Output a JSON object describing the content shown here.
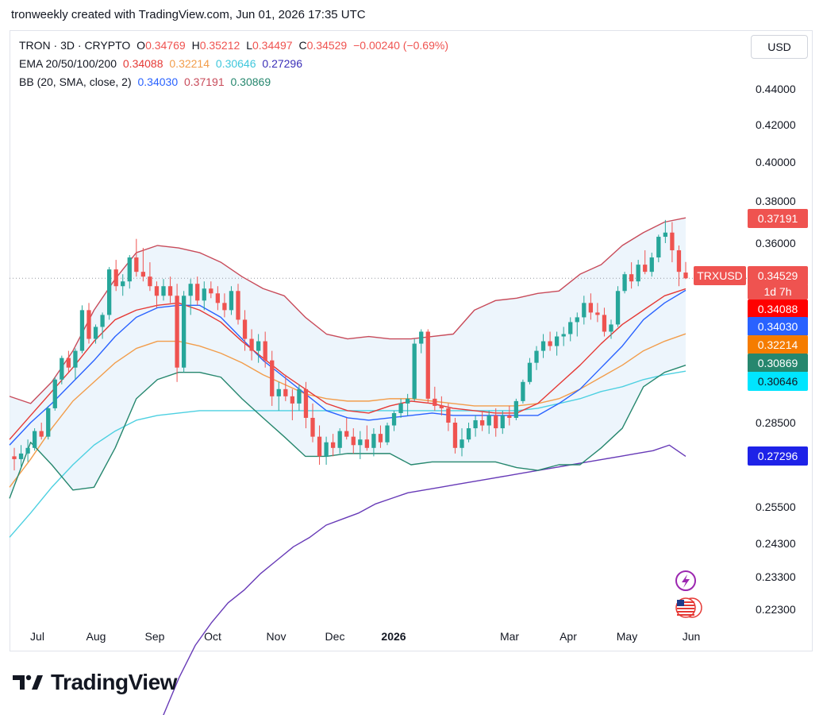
{
  "caption": "tronweekly created with TradingView.com, Jun 01, 2026 17:35 UTC",
  "brand": "TradingView",
  "currency": "USD",
  "legend": {
    "symbol": "TRON · 3D · CRYPTO",
    "ohlc": {
      "o_label": "O",
      "o": "0.34769",
      "h_label": "H",
      "h": "0.35212",
      "l_label": "L",
      "l": "0.34497",
      "c_label": "C",
      "c": "0.34529",
      "change": "−0.00240 (−0.69%)"
    },
    "ema_label": "EMA 20/50/100/200",
    "ema_values": [
      "0.34088",
      "0.32214",
      "0.30646",
      "0.27296"
    ],
    "bb_label": "BB (20, SMA, close, 2)",
    "bb_values": [
      "0.34030",
      "0.37191",
      "0.30869"
    ]
  },
  "colors": {
    "up": "#26a69a",
    "down": "#ef5350",
    "ema20": "#e53935",
    "ema50": "#f29d4b",
    "ema100": "#4dd0e1",
    "ema200": "#673ab7",
    "bb_basis": "#2962ff",
    "bb_upper": "#c84b5a",
    "bb_lower": "#26876e",
    "bb_fill": "#e8f3fb"
  },
  "chart_data": {
    "type": "candlestick",
    "symbol": "TRXUSD",
    "y_ticks": [
      "0.44000",
      "0.42000",
      "0.40000",
      "0.38000",
      "0.36000",
      "0.28500",
      "0.25500",
      "0.24300",
      "0.23300",
      "0.22300"
    ],
    "x_ticks": [
      "Jul",
      "Aug",
      "Sep",
      "Oct",
      "Nov",
      "Dec",
      "2026",
      "Mar",
      "Apr",
      "May",
      "Jun"
    ],
    "price_labels": [
      {
        "text": "0.37191",
        "color": "#ef5350",
        "key": "bb_upper"
      },
      {
        "text": "TRXUSD",
        "color": "#ef5350",
        "key": "symbol"
      },
      {
        "text": "0.34529",
        "color": "#ef5350",
        "key": "last"
      },
      {
        "text": "1d 7h",
        "color": "#ef5350",
        "key": "countdown"
      },
      {
        "text": "0.34088",
        "color": "#ff0000",
        "key": "ema20"
      },
      {
        "text": "0.34030",
        "color": "#2962ff",
        "key": "bb_basis"
      },
      {
        "text": "0.32214",
        "color": "#f57c00",
        "key": "ema50"
      },
      {
        "text": "0.30869",
        "color": "#26876e",
        "key": "bb_lower"
      },
      {
        "text": "0.30646",
        "color": "#00e5ff",
        "key": "ema100"
      },
      {
        "text": "0.27296",
        "color": "#1e22e8",
        "key": "ema200"
      }
    ],
    "candles": [
      [
        0.273,
        0.276,
        0.268,
        0.272
      ],
      [
        0.272,
        0.277,
        0.269,
        0.274
      ],
      [
        0.274,
        0.279,
        0.271,
        0.276
      ],
      [
        0.276,
        0.283,
        0.275,
        0.282
      ],
      [
        0.282,
        0.285,
        0.279,
        0.28
      ],
      [
        0.28,
        0.292,
        0.279,
        0.291
      ],
      [
        0.291,
        0.304,
        0.29,
        0.303
      ],
      [
        0.303,
        0.313,
        0.301,
        0.312
      ],
      [
        0.312,
        0.315,
        0.306,
        0.308
      ],
      [
        0.308,
        0.316,
        0.303,
        0.315
      ],
      [
        0.315,
        0.334,
        0.314,
        0.332
      ],
      [
        0.332,
        0.335,
        0.318,
        0.32
      ],
      [
        0.32,
        0.326,
        0.318,
        0.325
      ],
      [
        0.325,
        0.331,
        0.32,
        0.33
      ],
      [
        0.33,
        0.35,
        0.328,
        0.349
      ],
      [
        0.349,
        0.353,
        0.34,
        0.342
      ],
      [
        0.342,
        0.347,
        0.338,
        0.344
      ],
      [
        0.344,
        0.355,
        0.341,
        0.354
      ],
      [
        0.354,
        0.362,
        0.346,
        0.348
      ],
      [
        0.348,
        0.358,
        0.344,
        0.346
      ],
      [
        0.346,
        0.352,
        0.34,
        0.342
      ],
      [
        0.342,
        0.344,
        0.333,
        0.338
      ],
      [
        0.338,
        0.345,
        0.336,
        0.342
      ],
      [
        0.342,
        0.346,
        0.335,
        0.338
      ],
      [
        0.338,
        0.343,
        0.302,
        0.308
      ],
      [
        0.308,
        0.34,
        0.306,
        0.338
      ],
      [
        0.338,
        0.345,
        0.33,
        0.343
      ],
      [
        0.343,
        0.346,
        0.334,
        0.336
      ],
      [
        0.336,
        0.344,
        0.332,
        0.341
      ],
      [
        0.341,
        0.344,
        0.337,
        0.339
      ],
      [
        0.339,
        0.342,
        0.332,
        0.335
      ],
      [
        0.335,
        0.339,
        0.329,
        0.332
      ],
      [
        0.332,
        0.342,
        0.33,
        0.34
      ],
      [
        0.34,
        0.343,
        0.326,
        0.328
      ],
      [
        0.328,
        0.332,
        0.315,
        0.32
      ],
      [
        0.32,
        0.324,
        0.311,
        0.315
      ],
      [
        0.315,
        0.322,
        0.31,
        0.319
      ],
      [
        0.319,
        0.323,
        0.308,
        0.311
      ],
      [
        0.311,
        0.315,
        0.292,
        0.296
      ],
      [
        0.296,
        0.302,
        0.29,
        0.299
      ],
      [
        0.299,
        0.305,
        0.294,
        0.296
      ],
      [
        0.296,
        0.299,
        0.286,
        0.293
      ],
      [
        0.293,
        0.301,
        0.29,
        0.299
      ],
      [
        0.299,
        0.302,
        0.283,
        0.287
      ],
      [
        0.287,
        0.293,
        0.278,
        0.28
      ],
      [
        0.28,
        0.284,
        0.27,
        0.273
      ],
      [
        0.273,
        0.28,
        0.27,
        0.278
      ],
      [
        0.278,
        0.281,
        0.273,
        0.276
      ],
      [
        0.276,
        0.283,
        0.274,
        0.282
      ],
      [
        0.282,
        0.287,
        0.279,
        0.28
      ],
      [
        0.28,
        0.283,
        0.274,
        0.277
      ],
      [
        0.277,
        0.282,
        0.272,
        0.279
      ],
      [
        0.279,
        0.284,
        0.275,
        0.276
      ],
      [
        0.276,
        0.283,
        0.273,
        0.281
      ],
      [
        0.281,
        0.284,
        0.276,
        0.278
      ],
      [
        0.278,
        0.285,
        0.277,
        0.284
      ],
      [
        0.284,
        0.29,
        0.282,
        0.289
      ],
      [
        0.289,
        0.295,
        0.287,
        0.293
      ],
      [
        0.293,
        0.297,
        0.288,
        0.295
      ],
      [
        0.295,
        0.32,
        0.294,
        0.318
      ],
      [
        0.318,
        0.324,
        0.314,
        0.323
      ],
      [
        0.323,
        0.324,
        0.293,
        0.295
      ],
      [
        0.295,
        0.3,
        0.29,
        0.292
      ],
      [
        0.292,
        0.296,
        0.288,
        0.291
      ],
      [
        0.291,
        0.293,
        0.282,
        0.285
      ],
      [
        0.285,
        0.287,
        0.274,
        0.276
      ],
      [
        0.276,
        0.283,
        0.273,
        0.279
      ],
      [
        0.279,
        0.285,
        0.278,
        0.283
      ],
      [
        0.283,
        0.288,
        0.28,
        0.286
      ],
      [
        0.286,
        0.29,
        0.282,
        0.284
      ],
      [
        0.284,
        0.29,
        0.281,
        0.288
      ],
      [
        0.288,
        0.291,
        0.28,
        0.283
      ],
      [
        0.283,
        0.29,
        0.281,
        0.288
      ],
      [
        0.288,
        0.292,
        0.284,
        0.287
      ],
      [
        0.287,
        0.295,
        0.286,
        0.294
      ],
      [
        0.294,
        0.303,
        0.293,
        0.302
      ],
      [
        0.302,
        0.312,
        0.301,
        0.31
      ],
      [
        0.31,
        0.317,
        0.307,
        0.315
      ],
      [
        0.315,
        0.322,
        0.312,
        0.319
      ],
      [
        0.319,
        0.323,
        0.315,
        0.317
      ],
      [
        0.317,
        0.323,
        0.313,
        0.321
      ],
      [
        0.321,
        0.325,
        0.317,
        0.322
      ],
      [
        0.322,
        0.329,
        0.319,
        0.327
      ],
      [
        0.327,
        0.331,
        0.321,
        0.329
      ],
      [
        0.329,
        0.338,
        0.326,
        0.335
      ],
      [
        0.335,
        0.339,
        0.328,
        0.331
      ],
      [
        0.331,
        0.335,
        0.327,
        0.33
      ],
      [
        0.33,
        0.333,
        0.321,
        0.323
      ],
      [
        0.323,
        0.328,
        0.32,
        0.326
      ],
      [
        0.326,
        0.342,
        0.325,
        0.34
      ],
      [
        0.34,
        0.348,
        0.339,
        0.347
      ],
      [
        0.347,
        0.352,
        0.341,
        0.344
      ],
      [
        0.344,
        0.353,
        0.342,
        0.351
      ],
      [
        0.351,
        0.357,
        0.347,
        0.348
      ],
      [
        0.348,
        0.356,
        0.346,
        0.354
      ],
      [
        0.354,
        0.364,
        0.352,
        0.363
      ],
      [
        0.363,
        0.371,
        0.36,
        0.365
      ],
      [
        0.365,
        0.37,
        0.352,
        0.357
      ],
      [
        0.357,
        0.359,
        0.342,
        0.348
      ],
      [
        0.3477,
        0.3521,
        0.345,
        0.3453
      ]
    ],
    "bb_upper": [
      0.296,
      0.293,
      0.302,
      0.315,
      0.332,
      0.345,
      0.356,
      0.359,
      0.358,
      0.356,
      0.352,
      0.346,
      0.341,
      0.338,
      0.329,
      0.322,
      0.32,
      0.321,
      0.32,
      0.32,
      0.321,
      0.322,
      0.332,
      0.336,
      0.337,
      0.339,
      0.34,
      0.347,
      0.351,
      0.359,
      0.365,
      0.37,
      0.372
    ],
    "bb_lower": [
      0.258,
      0.278,
      0.27,
      0.261,
      0.262,
      0.276,
      0.295,
      0.303,
      0.306,
      0.306,
      0.304,
      0.295,
      0.287,
      0.28,
      0.273,
      0.273,
      0.274,
      0.274,
      0.274,
      0.27,
      0.271,
      0.271,
      0.271,
      0.271,
      0.269,
      0.268,
      0.27,
      0.27,
      0.276,
      0.283,
      0.3,
      0.306,
      0.309
    ],
    "bb_basis": [
      0.277,
      0.285,
      0.293,
      0.302,
      0.311,
      0.321,
      0.329,
      0.333,
      0.334,
      0.334,
      0.329,
      0.32,
      0.311,
      0.304,
      0.297,
      0.29,
      0.287,
      0.286,
      0.287,
      0.288,
      0.289,
      0.288,
      0.288,
      0.288,
      0.288,
      0.288,
      0.293,
      0.299,
      0.308,
      0.317,
      0.328,
      0.335,
      0.3403
    ],
    "ema20": [
      0.279,
      0.288,
      0.298,
      0.308,
      0.319,
      0.328,
      0.332,
      0.334,
      0.335,
      0.332,
      0.327,
      0.319,
      0.312,
      0.305,
      0.299,
      0.293,
      0.29,
      0.289,
      0.292,
      0.294,
      0.293,
      0.291,
      0.29,
      0.289,
      0.289,
      0.293,
      0.301,
      0.309,
      0.318,
      0.326,
      0.332,
      0.338,
      0.3409
    ],
    "ema50": [
      0.262,
      0.272,
      0.283,
      0.294,
      0.302,
      0.31,
      0.316,
      0.319,
      0.319,
      0.317,
      0.314,
      0.31,
      0.305,
      0.301,
      0.297,
      0.295,
      0.294,
      0.294,
      0.295,
      0.295,
      0.294,
      0.293,
      0.292,
      0.292,
      0.292,
      0.293,
      0.295,
      0.299,
      0.304,
      0.309,
      0.315,
      0.319,
      0.3221
    ],
    "ema100": [
      0.245,
      0.253,
      0.262,
      0.27,
      0.277,
      0.282,
      0.286,
      0.288,
      0.289,
      0.29,
      0.29,
      0.29,
      0.29,
      0.29,
      0.29,
      0.29,
      0.29,
      0.29,
      0.29,
      0.29,
      0.29,
      0.29,
      0.29,
      0.29,
      0.29,
      0.291,
      0.293,
      0.295,
      0.298,
      0.3,
      0.303,
      0.305,
      0.3065
    ],
    "ema200": [
      0.19,
      0.202,
      0.212,
      0.219,
      0.225,
      0.229,
      0.234,
      0.238,
      0.242,
      0.245,
      0.249,
      0.251,
      0.253,
      0.256,
      0.258,
      0.26,
      0.261,
      0.262,
      0.263,
      0.264,
      0.265,
      0.266,
      0.267,
      0.268,
      0.269,
      0.27,
      0.271,
      0.272,
      0.273,
      0.274,
      0.275,
      0.277,
      0.273
    ]
  }
}
